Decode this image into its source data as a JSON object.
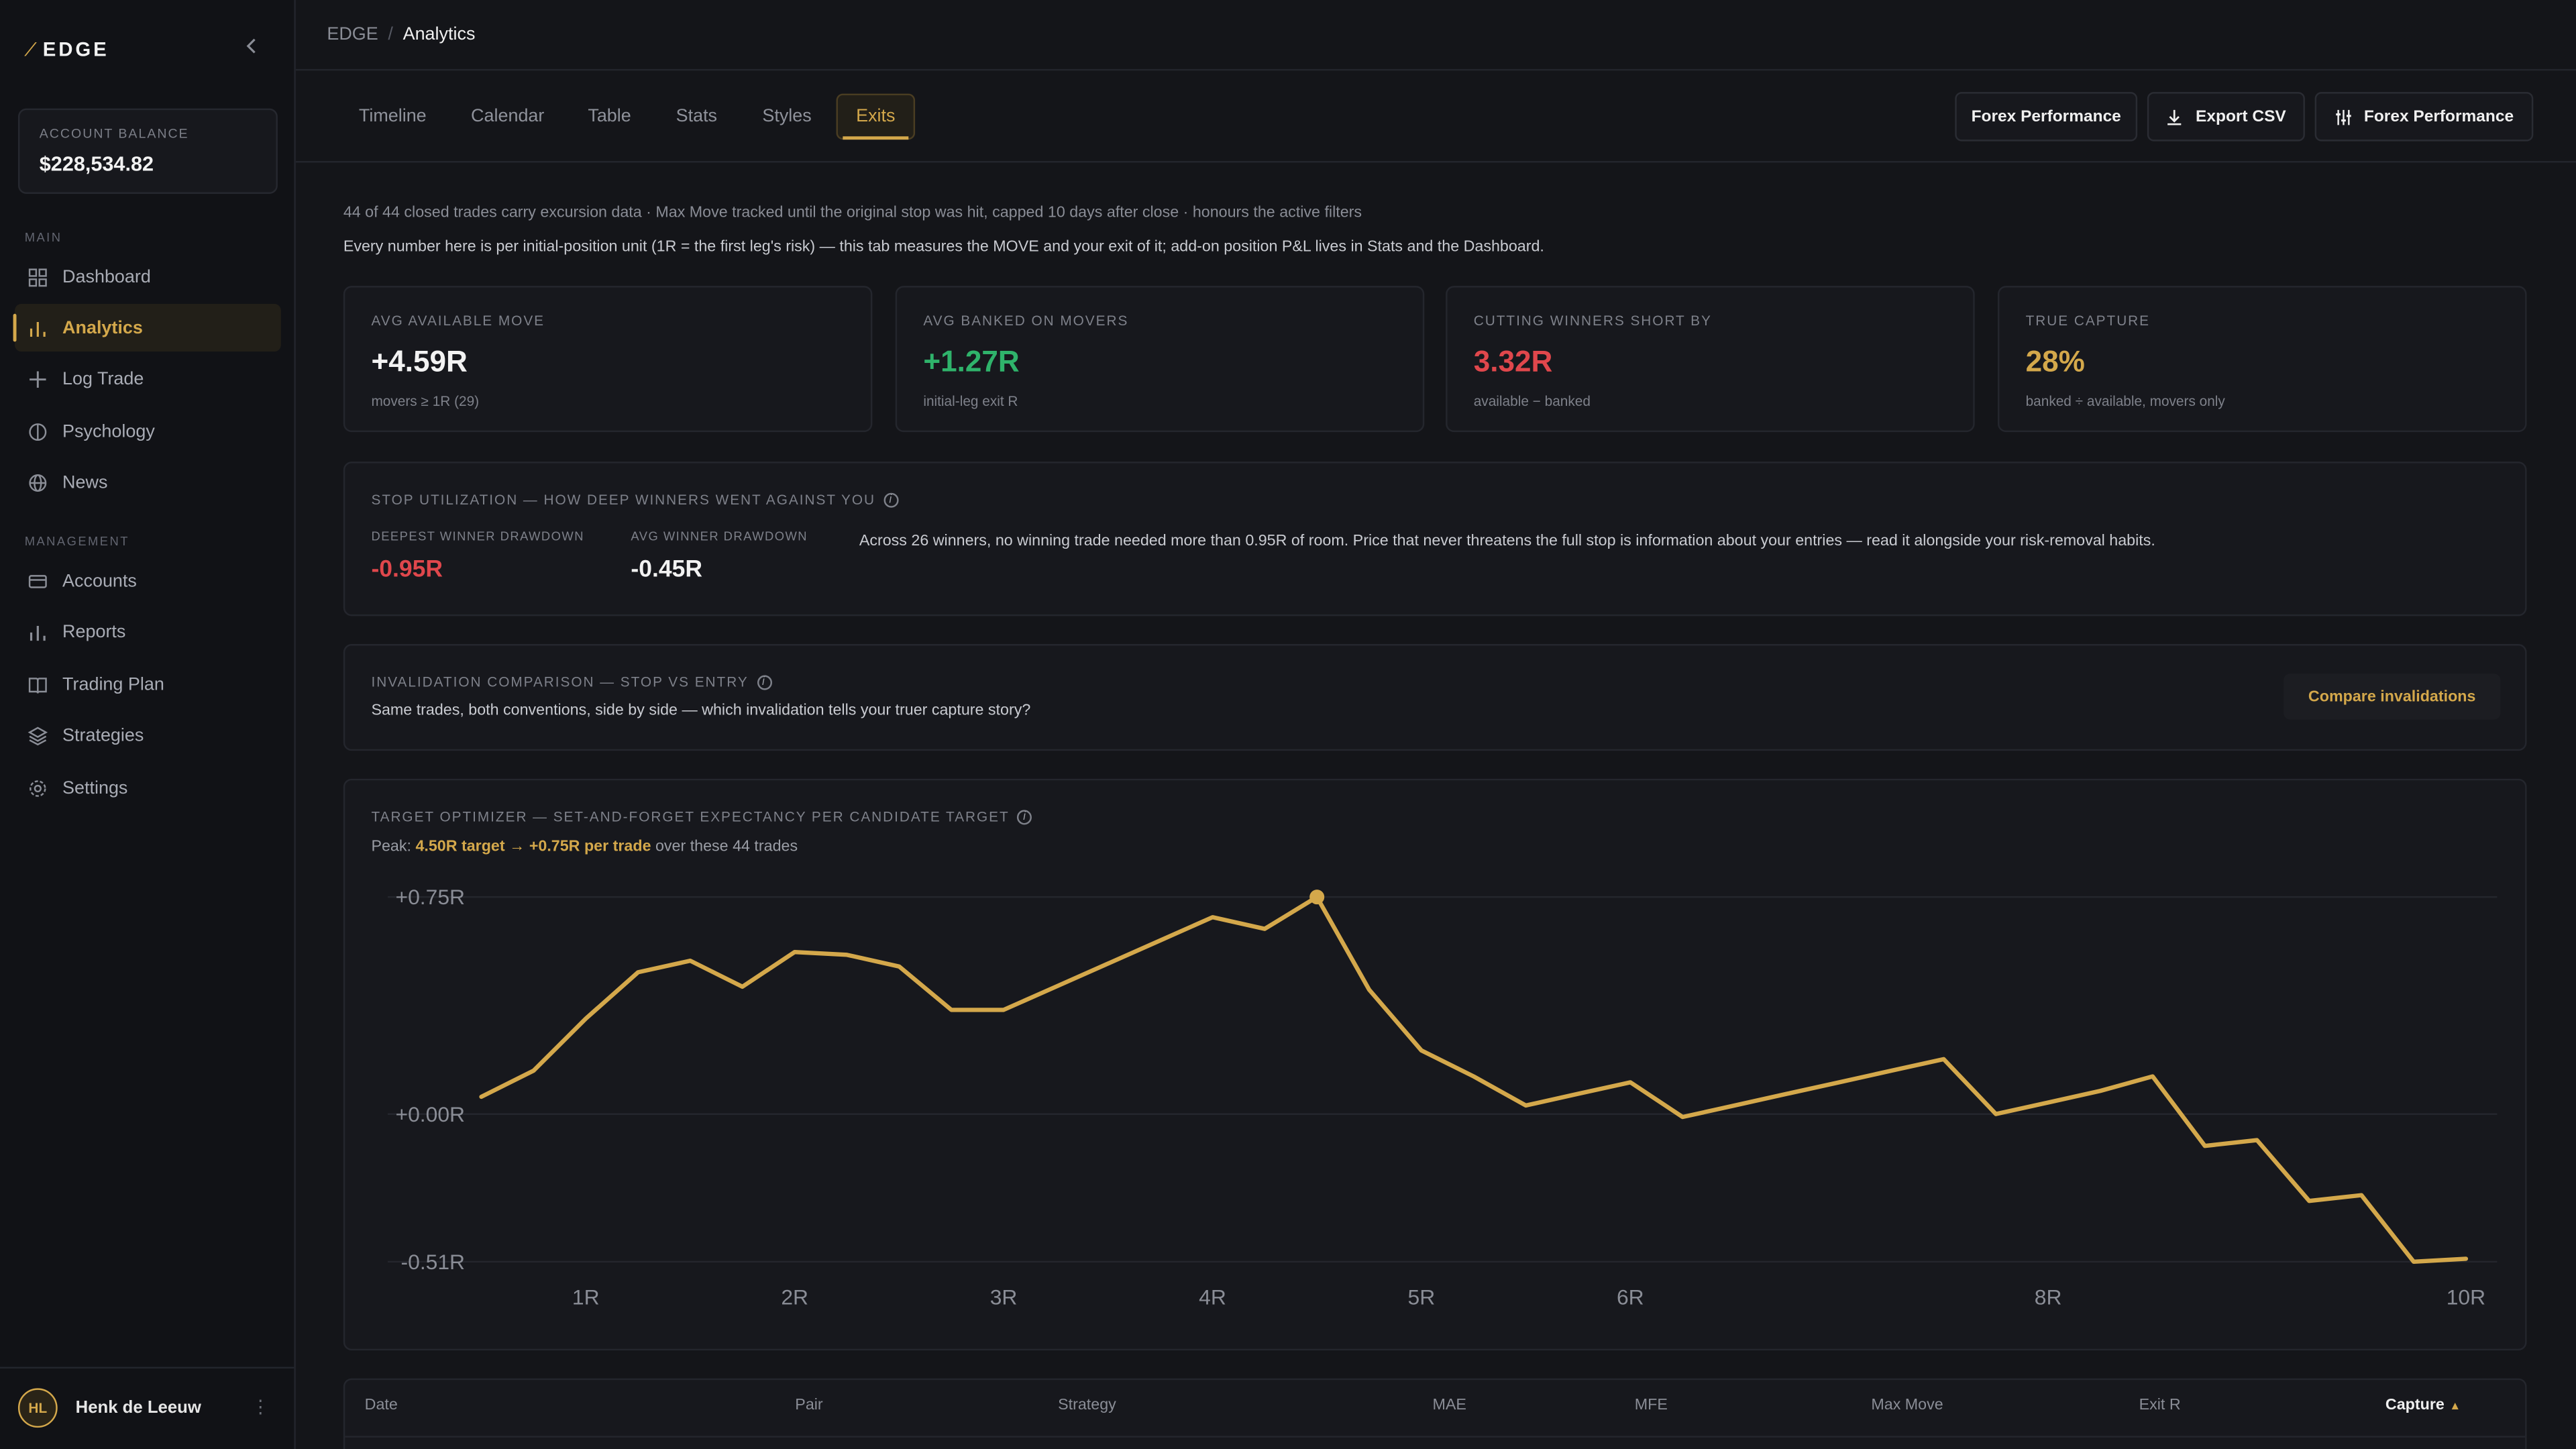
{
  "app": {
    "brand": "EDGE",
    "brand_mark": "⁄"
  },
  "sidebar": {
    "balance_label": "ACCOUNT BALANCE",
    "balance_value": "$228,534.82",
    "section_main": "MAIN",
    "section_management": "MANAGEMENT",
    "items": [
      {
        "label": "Dashboard",
        "icon": "grid-icon"
      },
      {
        "label": "Analytics",
        "icon": "bar-chart-icon",
        "active": true
      },
      {
        "label": "Log Trade",
        "icon": "plus-icon"
      },
      {
        "label": "Psychology",
        "icon": "brain-icon"
      },
      {
        "label": "News",
        "icon": "globe-icon"
      },
      {
        "label": "Accounts",
        "icon": "card-icon"
      },
      {
        "label": "Reports",
        "icon": "bar-chart-icon"
      },
      {
        "label": "Trading Plan",
        "icon": "book-icon"
      },
      {
        "label": "Strategies",
        "icon": "layers-icon"
      },
      {
        "label": "Settings",
        "icon": "gear-icon"
      }
    ],
    "user": {
      "initials": "HL",
      "name": "Henk de Leeuw"
    }
  },
  "breadcrumb": {
    "root": "EDGE",
    "separator": "/",
    "current": "Analytics"
  },
  "tabs": [
    {
      "label": "Timeline"
    },
    {
      "label": "Calendar"
    },
    {
      "label": "Table"
    },
    {
      "label": "Stats"
    },
    {
      "label": "Styles"
    },
    {
      "label": "Exits",
      "active": true
    }
  ],
  "header_buttons": {
    "filter_label": "Forex Performance",
    "export_label": "Export CSV",
    "settings_label": "Forex Performance"
  },
  "notes": {
    "line1": "44 of 44 closed trades carry excursion data · Max Move tracked until the original stop was hit, capped 10 days after close · honours the active filters",
    "line2": "Every number here is per initial-position unit (1R = the first leg's risk) — this tab measures the MOVE and your exit of it; add-on position P&L lives in Stats and the Dashboard."
  },
  "cards": [
    {
      "label": "AVG AVAILABLE MOVE",
      "value": "+4.59R",
      "sub": "movers ≥ 1R (29)",
      "color": "#f2f2f2"
    },
    {
      "label": "AVG BANKED ON MOVERS",
      "value": "+1.27R",
      "sub": "initial-leg exit R",
      "color": "#2fb36b"
    },
    {
      "label": "CUTTING WINNERS SHORT BY",
      "value": "3.32R",
      "sub": "available − banked",
      "color": "#e0474c"
    },
    {
      "label": "TRUE CAPTURE",
      "value": "28%",
      "sub": "banked ÷ available, movers only",
      "color": "#d4a84b"
    }
  ],
  "stop_utilization": {
    "title": "STOP UTILIZATION — HOW DEEP WINNERS WENT AGAINST YOU",
    "deepest_label": "DEEPEST WINNER DRAWDOWN",
    "deepest_value": "-0.95R",
    "avg_label": "AVG WINNER DRAWDOWN",
    "avg_value": "-0.45R",
    "text": "Across 26 winners, no winning trade needed more than 0.95R of room. Price that never threatens the full stop is information about your entries — read it alongside your risk-removal habits."
  },
  "invalidation": {
    "title": "INVALIDATION COMPARISON — STOP VS ENTRY",
    "text": "Same trades, both conventions, side by side — which invalidation tells your truer capture story?",
    "button": "Compare invalidations"
  },
  "optimizer": {
    "title": "TARGET OPTIMIZER — SET-AND-FORGET EXPECTANCY PER CANDIDATE TARGET",
    "peak_prefix": "Peak: ",
    "peak_highlight": "4.50R target → +0.75R per trade",
    "peak_suffix": " over these 44 trades"
  },
  "chart_data": {
    "type": "line",
    "x": [
      0.5,
      0.75,
      1.0,
      1.25,
      1.5,
      1.75,
      2.0,
      2.25,
      2.5,
      2.75,
      3.0,
      3.25,
      3.5,
      3.75,
      4.0,
      4.25,
      4.5,
      4.75,
      5.0,
      5.25,
      5.5,
      5.75,
      6.0,
      6.25,
      6.5,
      6.75,
      7.0,
      7.25,
      7.5,
      7.75,
      8.0,
      8.25,
      8.5,
      8.75,
      9.0,
      9.25,
      9.5,
      9.75,
      10.0
    ],
    "values": [
      0.06,
      0.15,
      0.33,
      0.49,
      0.53,
      0.44,
      0.56,
      0.55,
      0.51,
      0.36,
      0.36,
      0.44,
      0.52,
      0.6,
      0.68,
      0.64,
      0.75,
      0.43,
      0.22,
      0.13,
      0.03,
      0.07,
      0.11,
      -0.01,
      0.03,
      0.07,
      0.11,
      0.15,
      0.19,
      0.0,
      0.04,
      0.08,
      0.13,
      -0.11,
      -0.09,
      -0.3,
      -0.28,
      -0.51,
      -0.5
    ],
    "peak": {
      "x": 4.5,
      "y": 0.75
    },
    "y_ticks": [
      "+0.75R",
      "+0.00R",
      "-0.51R"
    ],
    "y_tick_values": [
      0.75,
      0.0,
      -0.51
    ],
    "x_ticks": [
      "1R",
      "2R",
      "3R",
      "4R",
      "5R",
      "6R",
      "8R",
      "10R"
    ],
    "x_tick_values": [
      1,
      2,
      3,
      4,
      5,
      6,
      8,
      10
    ],
    "xlim": [
      0.5,
      10
    ],
    "ylim": [
      -0.51,
      0.75
    ],
    "grid": true,
    "line_color": "#d4a84b"
  },
  "table": {
    "columns": [
      "Date",
      "Pair",
      "Strategy",
      "MAE",
      "MFE",
      "Max Move",
      "Exit R",
      "Capture"
    ],
    "sort_column": "Capture",
    "sort_indicator": "▲"
  }
}
